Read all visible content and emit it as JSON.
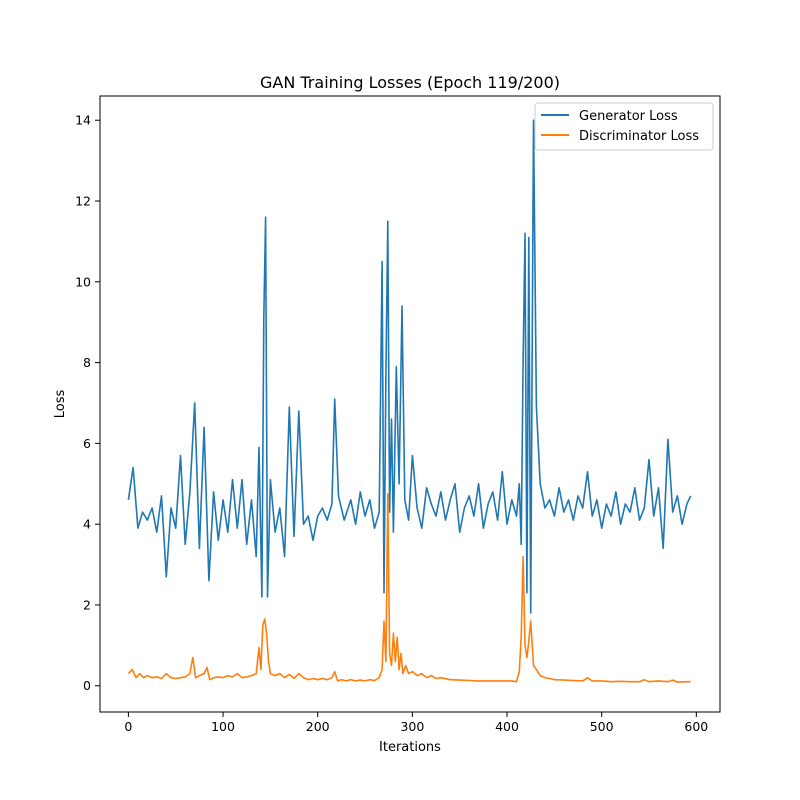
{
  "chart_data": {
    "type": "line",
    "title": "GAN Training Losses (Epoch 119/200)",
    "xlabel": "Iterations",
    "ylabel": "Loss",
    "xlim": [
      -30,
      625
    ],
    "ylim": [
      -0.65,
      14.6
    ],
    "xticks": [
      0,
      100,
      200,
      300,
      400,
      500,
      600
    ],
    "yticks": [
      0,
      2,
      4,
      6,
      8,
      10,
      12,
      14
    ],
    "grid": false,
    "legend": "top-right",
    "series": [
      {
        "name": "Generator Loss",
        "color": "#1f77b4",
        "x": [
          0,
          5,
          10,
          15,
          20,
          25,
          30,
          35,
          40,
          45,
          50,
          55,
          60,
          65,
          70,
          75,
          80,
          85,
          90,
          95,
          100,
          105,
          110,
          115,
          120,
          125,
          130,
          135,
          138,
          141,
          143,
          145,
          147,
          150,
          155,
          160,
          165,
          170,
          175,
          180,
          185,
          190,
          195,
          200,
          205,
          210,
          215,
          218,
          222,
          228,
          235,
          240,
          245,
          250,
          255,
          260,
          265,
          268,
          270,
          272,
          274,
          276,
          278,
          280,
          283,
          286,
          289,
          292,
          296,
          300,
          305,
          310,
          315,
          320,
          325,
          330,
          335,
          340,
          345,
          350,
          355,
          360,
          365,
          370,
          375,
          380,
          385,
          390,
          395,
          400,
          405,
          410,
          413,
          415,
          417,
          419,
          421,
          423,
          425,
          428,
          431,
          435,
          440,
          445,
          450,
          455,
          460,
          465,
          470,
          475,
          480,
          485,
          490,
          495,
          500,
          505,
          510,
          515,
          520,
          525,
          530,
          535,
          540,
          545,
          550,
          555,
          560,
          565,
          570,
          575,
          580,
          585,
          590,
          594
        ],
        "y": [
          4.6,
          5.4,
          3.9,
          4.3,
          4.1,
          4.4,
          3.8,
          4.7,
          2.7,
          4.4,
          3.9,
          5.7,
          3.5,
          4.8,
          7.0,
          3.4,
          6.4,
          2.6,
          4.8,
          3.6,
          4.6,
          3.8,
          5.1,
          3.9,
          5.1,
          3.5,
          4.6,
          3.2,
          5.9,
          2.2,
          9.1,
          11.6,
          2.2,
          5.1,
          3.8,
          4.4,
          3.2,
          6.9,
          3.7,
          6.8,
          4.0,
          4.2,
          3.6,
          4.2,
          4.4,
          4.1,
          4.5,
          7.1,
          4.7,
          4.1,
          4.6,
          4.0,
          4.8,
          4.2,
          4.6,
          3.9,
          4.3,
          10.5,
          2.3,
          7.7,
          11.5,
          4.3,
          6.6,
          3.8,
          7.9,
          5.0,
          9.4,
          4.6,
          4.1,
          5.7,
          4.4,
          3.9,
          4.9,
          4.5,
          4.2,
          4.8,
          4.1,
          4.6,
          5.0,
          3.8,
          4.4,
          4.7,
          4.2,
          5.0,
          3.9,
          4.5,
          4.8,
          4.1,
          5.3,
          4.0,
          4.6,
          4.2,
          5.0,
          3.5,
          8.0,
          11.2,
          2.3,
          11.1,
          1.8,
          14.0,
          6.9,
          5.0,
          4.4,
          4.6,
          4.2,
          4.9,
          4.3,
          4.6,
          4.1,
          4.7,
          4.4,
          5.3,
          4.2,
          4.6,
          3.9,
          4.5,
          4.2,
          4.8,
          4.0,
          4.5,
          4.3,
          4.9,
          4.1,
          4.4,
          5.6,
          4.2,
          4.9,
          3.4,
          6.1,
          4.3,
          4.7,
          4.0,
          4.5,
          4.7
        ]
      },
      {
        "name": "Discriminator Loss",
        "color": "#ff7f0e",
        "x": [
          0,
          4,
          8,
          12,
          16,
          20,
          25,
          30,
          35,
          40,
          45,
          50,
          55,
          60,
          65,
          68,
          71,
          75,
          80,
          83,
          86,
          90,
          95,
          100,
          105,
          110,
          115,
          120,
          125,
          130,
          135,
          138,
          140,
          142,
          144,
          146,
          148,
          150,
          155,
          160,
          165,
          170,
          175,
          180,
          185,
          190,
          195,
          200,
          205,
          210,
          215,
          218,
          221,
          225,
          230,
          235,
          240,
          245,
          250,
          255,
          260,
          265,
          268,
          270,
          272,
          274,
          276,
          278,
          280,
          282,
          284,
          286,
          288,
          290,
          293,
          296,
          300,
          305,
          310,
          315,
          320,
          325,
          330,
          340,
          350,
          360,
          370,
          380,
          390,
          400,
          405,
          410,
          413,
          415,
          417,
          419,
          421,
          423,
          425,
          428,
          431,
          435,
          440,
          445,
          450,
          460,
          470,
          480,
          485,
          490,
          500,
          510,
          520,
          530,
          540,
          545,
          550,
          560,
          570,
          575,
          580,
          590,
          594
        ],
        "y": [
          0.3,
          0.4,
          0.2,
          0.3,
          0.2,
          0.25,
          0.2,
          0.22,
          0.18,
          0.3,
          0.2,
          0.18,
          0.2,
          0.22,
          0.3,
          0.7,
          0.2,
          0.25,
          0.3,
          0.45,
          0.15,
          0.2,
          0.22,
          0.2,
          0.25,
          0.22,
          0.3,
          0.2,
          0.22,
          0.25,
          0.3,
          0.95,
          0.4,
          1.5,
          1.65,
          1.3,
          0.6,
          0.3,
          0.25,
          0.3,
          0.2,
          0.28,
          0.18,
          0.3,
          0.2,
          0.15,
          0.18,
          0.15,
          0.18,
          0.15,
          0.2,
          0.35,
          0.12,
          0.15,
          0.12,
          0.15,
          0.12,
          0.14,
          0.12,
          0.15,
          0.13,
          0.2,
          0.4,
          1.6,
          0.6,
          4.75,
          0.8,
          0.5,
          1.3,
          0.6,
          1.2,
          0.4,
          0.8,
          0.3,
          0.5,
          0.3,
          0.35,
          0.25,
          0.3,
          0.2,
          0.25,
          0.18,
          0.2,
          0.15,
          0.14,
          0.13,
          0.12,
          0.12,
          0.12,
          0.12,
          0.12,
          0.1,
          0.35,
          1.2,
          3.2,
          1.0,
          0.7,
          1.1,
          1.6,
          0.5,
          0.4,
          0.25,
          0.2,
          0.18,
          0.15,
          0.14,
          0.13,
          0.12,
          0.2,
          0.12,
          0.12,
          0.1,
          0.11,
          0.1,
          0.1,
          0.15,
          0.1,
          0.12,
          0.1,
          0.14,
          0.09,
          0.1,
          0.1
        ]
      }
    ]
  }
}
